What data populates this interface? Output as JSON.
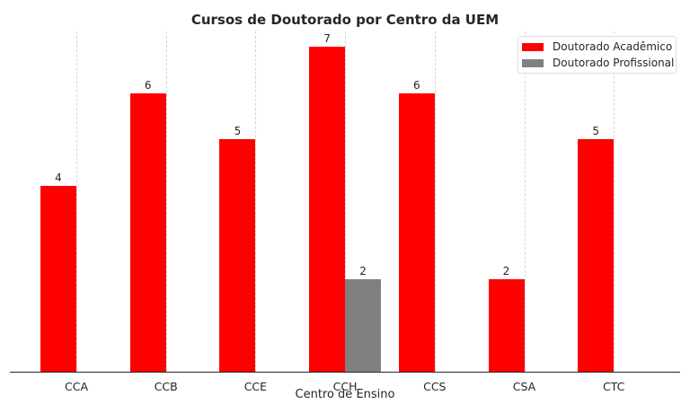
{
  "chart_data": {
    "type": "bar",
    "title": "Cursos de Doutorado por Centro da UEM",
    "xlabel": "Centro de Ensino",
    "ylabel": "",
    "categories": [
      "CCA",
      "CCB",
      "CCE",
      "CCH",
      "CCS",
      "CSA",
      "CTC"
    ],
    "series": [
      {
        "name": "Doutorado Acadêmico",
        "color": "#ff0000",
        "values": [
          4,
          6,
          5,
          7,
          6,
          2,
          5
        ]
      },
      {
        "name": "Doutorado Profissional",
        "color": "#808080",
        "values": [
          0,
          0,
          0,
          2,
          0,
          0,
          0
        ]
      }
    ],
    "ylim": [
      0,
      7.35
    ],
    "grid": {
      "x": true,
      "y": false
    },
    "legend_position": "upper right",
    "bar_labels": true
  }
}
